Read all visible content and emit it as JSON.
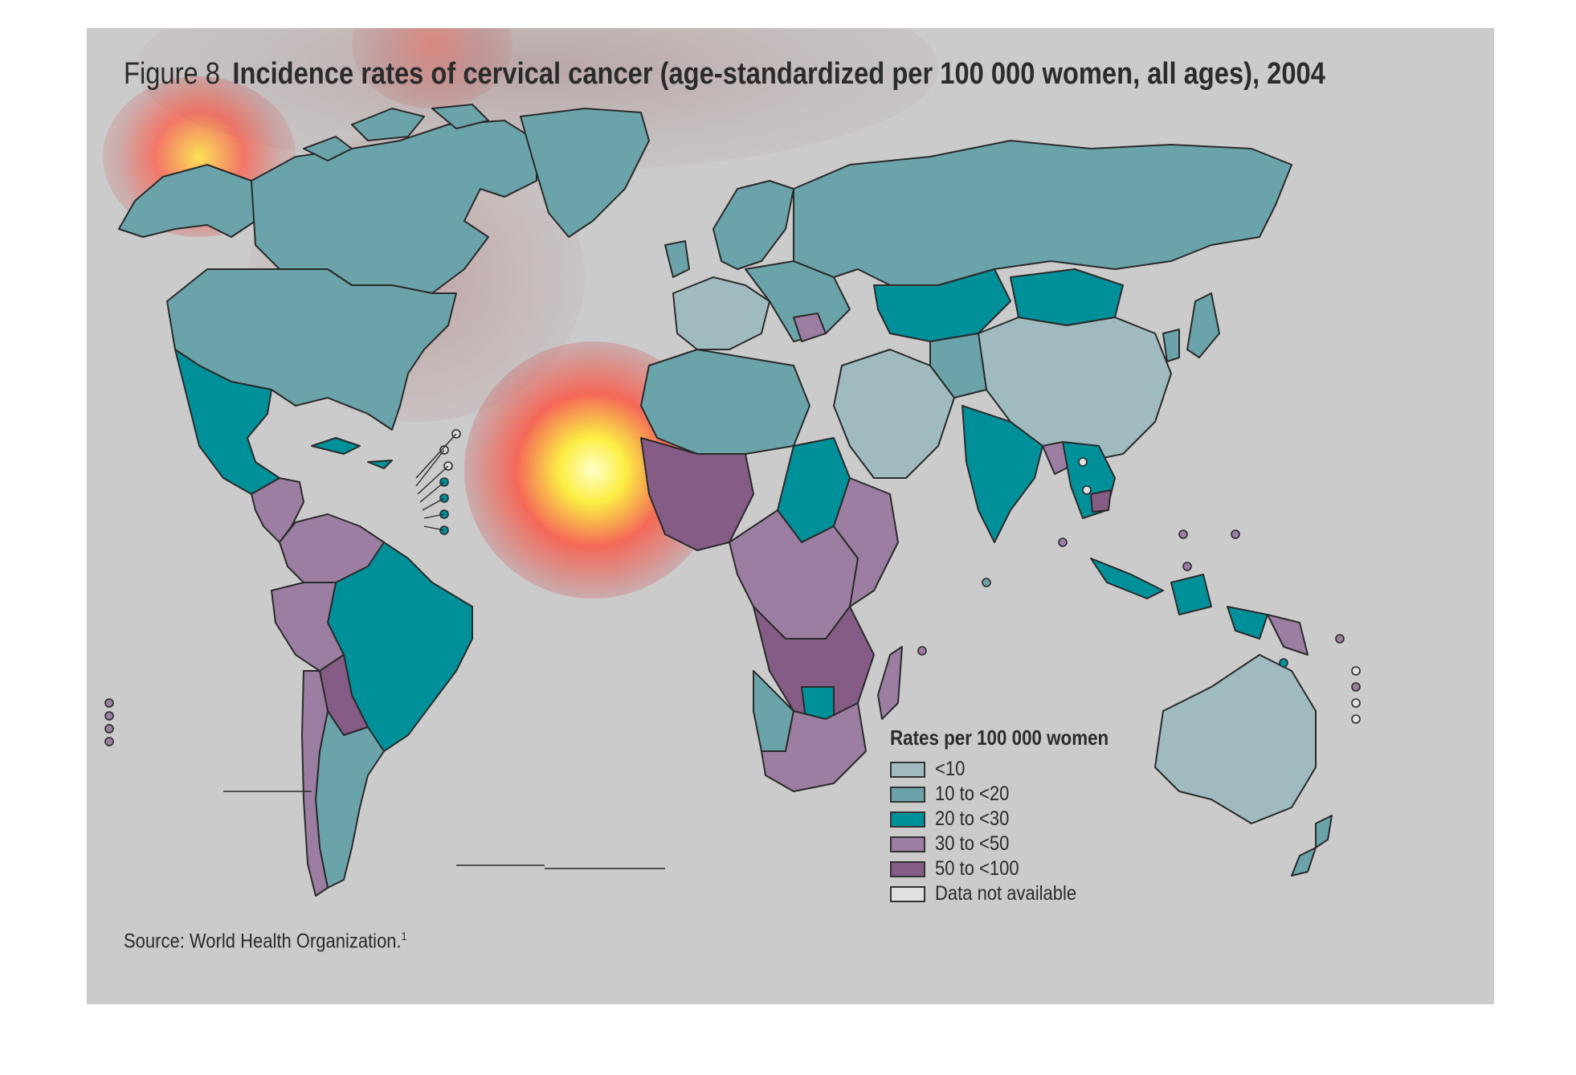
{
  "figure": {
    "label": "Figure 8",
    "title": "Incidence rates of cervical cancer (age-standardized per 100 000 women, all ages), 2004"
  },
  "legend": {
    "title": "Rates per 100 000 women",
    "items": [
      {
        "label": "<10",
        "color": "#9fbbbf"
      },
      {
        "label": "10 to <20",
        "color": "#6ba3aa"
      },
      {
        "label": "20 to <30",
        "color": "#00909a"
      },
      {
        "label": "30 to <50",
        "color": "#9c7ea3"
      },
      {
        "label": "50 to <100",
        "color": "#845c85"
      },
      {
        "label": "Data not available",
        "color": "#e0e0e0"
      }
    ]
  },
  "source": {
    "text": "Source: World Health Organization.",
    "note": "1"
  },
  "colors": {
    "background": "#cbcbcb",
    "outline": "#2a2a2a"
  }
}
